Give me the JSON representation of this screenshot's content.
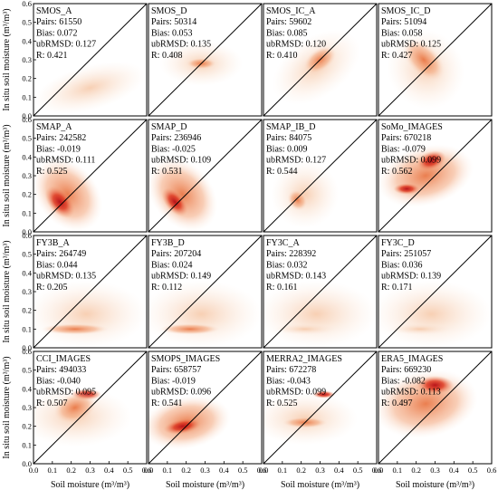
{
  "figure": {
    "colors": {
      "density_low": "#fbe9dc",
      "density_mid": "#ef9a66",
      "density_high": "#b8141a",
      "line": "#000000",
      "frame": "#000000"
    }
  },
  "chart_data": {
    "type": "scatter",
    "layout": "4x4 grid of density scatter panels",
    "xlabel": "Soil moisture (m³/m³)",
    "ylabel": "In situ soil moisture (m³/m³)",
    "xlim": [
      0.0,
      0.6
    ],
    "ylim": [
      0.0,
      0.6
    ],
    "xticks": [
      "0.0",
      "0.1",
      "0.2",
      "0.3",
      "0.4",
      "0.5",
      "0.6"
    ],
    "yticks": [
      "0.0",
      "0.1",
      "0.2",
      "0.3",
      "0.4",
      "0.5",
      "0.6"
    ],
    "stat_labels": {
      "pairs": "Pairs: ",
      "bias": "Bias: ",
      "ubrmsd": "ubRMSD: ",
      "r": "R: "
    },
    "reference_line": "1:1",
    "panels": [
      {
        "name": "SMOS_A",
        "pairs": "61550",
        "bias": "0.072",
        "ubrmsd": "0.127",
        "r": "0.421"
      },
      {
        "name": "SMOS_D",
        "pairs": "50314",
        "bias": "0.053",
        "ubrmsd": "0.135",
        "r": "0.408"
      },
      {
        "name": "SMOS_IC_A",
        "pairs": "59602",
        "bias": "0.085",
        "ubrmsd": "0.120",
        "r": "0.410"
      },
      {
        "name": "SMOS_IC_D",
        "pairs": "51094",
        "bias": "0.058",
        "ubrmsd": "0.125",
        "r": "0.427"
      },
      {
        "name": "SMAP_A",
        "pairs": "242582",
        "bias": "-0.019",
        "ubrmsd": "0.111",
        "r": "0.525"
      },
      {
        "name": "SMAP_D",
        "pairs": "236946",
        "bias": "-0.025",
        "ubrmsd": "0.109",
        "r": "0.531"
      },
      {
        "name": "SMAP_IB_D",
        "pairs": "84075",
        "bias": "0.009",
        "ubrmsd": "0.127",
        "r": "0.544"
      },
      {
        "name": "SoMo_IMAGES",
        "pairs": "670218",
        "bias": "-0.079",
        "ubrmsd": "0.099",
        "r": "0.562"
      },
      {
        "name": "FY3B_A",
        "pairs": "264749",
        "bias": "0.044",
        "ubrmsd": "0.135",
        "r": "0.205"
      },
      {
        "name": "FY3B_D",
        "pairs": "207204",
        "bias": "0.024",
        "ubrmsd": "0.149",
        "r": "0.112"
      },
      {
        "name": "FY3C_A",
        "pairs": "228392",
        "bias": "0.032",
        "ubrmsd": "0.143",
        "r": "0.161"
      },
      {
        "name": "FY3C_D",
        "pairs": "251057",
        "bias": "0.036",
        "ubrmsd": "0.139",
        "r": "0.171"
      },
      {
        "name": "CCI_IMAGES",
        "pairs": "494033",
        "bias": "-0.040",
        "ubrmsd": "0.095",
        "r": "0.507"
      },
      {
        "name": "SMOPS_IMAGES",
        "pairs": "658757",
        "bias": "-0.019",
        "ubrmsd": "0.096",
        "r": "0.541"
      },
      {
        "name": "MERRA2_IMAGES",
        "pairs": "672278",
        "bias": "-0.043",
        "ubrmsd": "0.099",
        "r": "0.525"
      },
      {
        "name": "ERA5_IMAGES",
        "pairs": "669230",
        "bias": "-0.082",
        "ubrmsd": "0.113",
        "r": "0.497"
      }
    ]
  }
}
